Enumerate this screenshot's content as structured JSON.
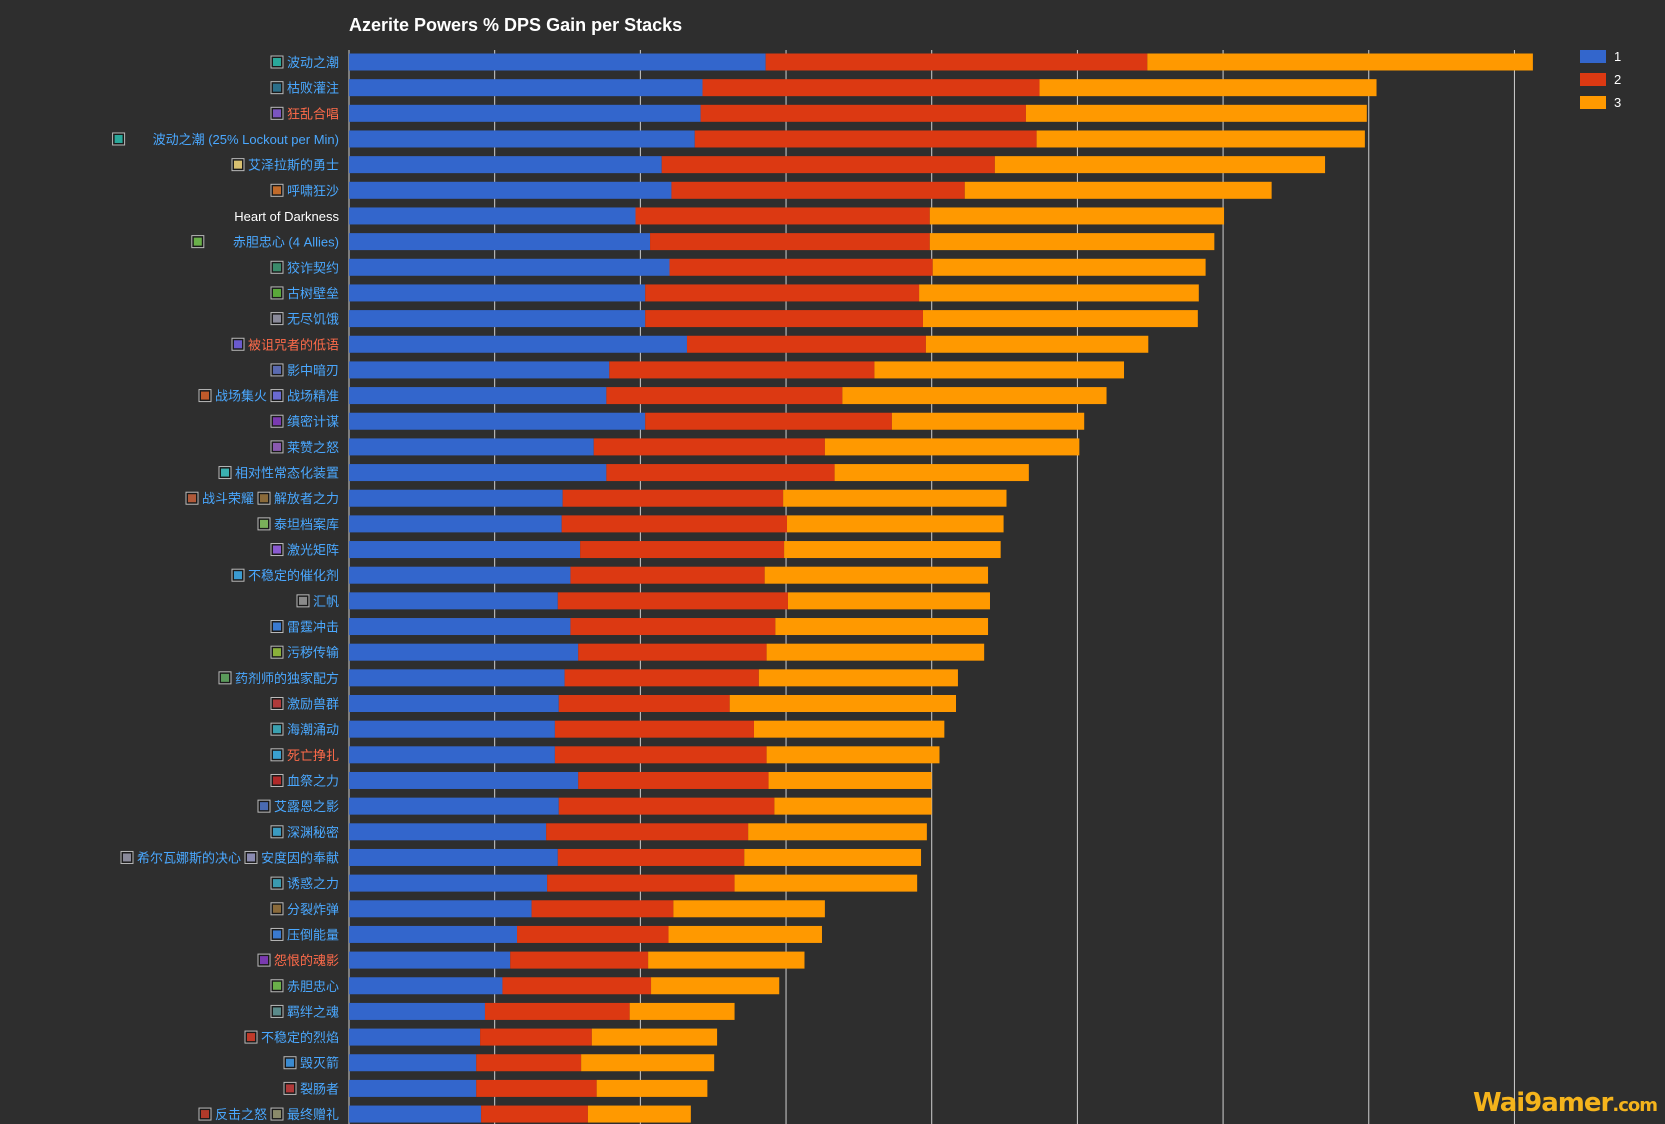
{
  "chart_data": {
    "type": "bar",
    "orientation": "horizontal",
    "stacked": true,
    "title": "Azerite Powers % DPS Gain per Stacks",
    "legend_position": "top-right",
    "grid": true,
    "series": [
      {
        "name": "1",
        "color": "#3366cc"
      },
      {
        "name": "2",
        "color": "#dc3912"
      },
      {
        "name": "3",
        "color": "#ff9900"
      }
    ],
    "rows": [
      {
        "label": "波动之潮",
        "label_color": "#4aa8ff",
        "icon_color": "#2aa89a",
        "values": [
          42.9,
          39.3,
          39.7
        ]
      },
      {
        "label": "枯败灌注",
        "label_color": "#4aa8ff",
        "icon_color": "#2b6f8a",
        "values": [
          36.4,
          34.7,
          34.7
        ]
      },
      {
        "label": "狂乱合唱",
        "label_color": "#ff6b4a",
        "icon_color": "#7a55c0",
        "values": [
          36.2,
          33.5,
          35.1
        ]
      },
      {
        "label": "波动之潮 (25% Lockout per Min)",
        "label_color": "#4aa8ff",
        "icon_color": "#2aa89a",
        "values": [
          35.6,
          35.2,
          33.8
        ]
      },
      {
        "label": "艾泽拉斯的勇士",
        "label_color": "#4aa8ff",
        "icon_color": "#d8c070",
        "values": [
          32.2,
          34.3,
          34.0
        ]
      },
      {
        "label": "呼啸狂沙",
        "label_color": "#4aa8ff",
        "icon_color": "#c06a2a",
        "values": [
          33.2,
          30.2,
          31.6
        ]
      },
      {
        "label": "Heart of Darkness",
        "label_color": "#ffffff",
        "icon_color": "",
        "values": [
          29.5,
          30.3,
          30.3
        ]
      },
      {
        "label": "赤胆忠心 (4 Allies)",
        "label_color": "#4aa8ff",
        "icon_color": "#6ab04a",
        "values": [
          31.0,
          28.8,
          29.3
        ]
      },
      {
        "label": "狡诈契约",
        "label_color": "#4aa8ff",
        "icon_color": "#3a8a6a",
        "values": [
          33.0,
          27.1,
          28.1
        ]
      },
      {
        "label": "古树壁垒",
        "label_color": "#4aa8ff",
        "icon_color": "#5aa83a",
        "values": [
          30.5,
          28.2,
          28.8
        ]
      },
      {
        "label": "无尽饥饿",
        "label_color": "#4aa8ff",
        "icon_color": "#8a8a9a",
        "values": [
          30.5,
          28.6,
          28.3
        ]
      },
      {
        "label": "被诅咒者的低语",
        "label_color": "#ff6b4a",
        "icon_color": "#6a5acd",
        "values": [
          34.8,
          24.6,
          22.9
        ]
      },
      {
        "label": "影中暗刃",
        "label_color": "#4aa8ff",
        "icon_color": "#5a6ab0",
        "values": [
          26.8,
          27.3,
          25.7
        ]
      },
      {
        "label": "战场集火",
        "label_color": "#4aa8ff",
        "icon_color": "#c05a2a",
        "values": [
          26.5,
          24.3,
          27.2
        ]
      },
      {
        "label": "缜密计谋",
        "label_color": "#4aa8ff",
        "icon_color": "#7a3ab0",
        "values": [
          30.5,
          25.4,
          19.8
        ]
      },
      {
        "label": "莱赞之怒",
        "label_color": "#4aa8ff",
        "icon_color": "#8a5ab0",
        "values": [
          25.2,
          23.8,
          26.2
        ]
      },
      {
        "label": "相对性常态化装置",
        "label_color": "#4aa8ff",
        "icon_color": "#3ab0b0",
        "values": [
          26.5,
          23.5,
          20.0
        ]
      },
      {
        "label": "战斗荣耀",
        "label_color": "#4aa8ff",
        "icon_color": "#b05a3a",
        "values": [
          22.0,
          22.7,
          23.0
        ]
      },
      {
        "label": "泰坦档案库",
        "label_color": "#4aa8ff",
        "icon_color": "#7ab05a",
        "values": [
          21.9,
          23.2,
          22.3
        ]
      },
      {
        "label": "激光矩阵",
        "label_color": "#4aa8ff",
        "icon_color": "#8a5ad0",
        "values": [
          23.8,
          21.0,
          22.3
        ]
      },
      {
        "label": "不稳定的催化剂",
        "label_color": "#4aa8ff",
        "icon_color": "#3a9ad0",
        "values": [
          22.8,
          20.0,
          23.0
        ]
      },
      {
        "label": "汇帆",
        "label_color": "#4aa8ff",
        "icon_color": "#8a8a8a",
        "values": [
          21.5,
          23.7,
          20.8
        ]
      },
      {
        "label": "雷霆冲击",
        "label_color": "#4aa8ff",
        "icon_color": "#3a7ad0",
        "values": [
          22.8,
          21.1,
          21.9
        ]
      },
      {
        "label": "污秽传输",
        "label_color": "#4aa8ff",
        "icon_color": "#8ab03a",
        "values": [
          23.6,
          19.4,
          22.4
        ]
      },
      {
        "label": "药剂师的独家配方",
        "label_color": "#4aa8ff",
        "icon_color": "#5a9a5a",
        "values": [
          22.2,
          20.0,
          20.5
        ]
      },
      {
        "label": "激励兽群",
        "label_color": "#4aa8ff",
        "icon_color": "#b03a3a",
        "values": [
          21.6,
          17.6,
          23.3
        ]
      },
      {
        "label": "海潮涌动",
        "label_color": "#4aa8ff",
        "icon_color": "#3aa0b0",
        "values": [
          21.2,
          20.5,
          19.6
        ]
      },
      {
        "label": "死亡挣扎",
        "label_color": "#ff6b4a",
        "icon_color": "#3aa0d0",
        "values": [
          21.2,
          21.8,
          17.8
        ]
      },
      {
        "label": "血祭之力",
        "label_color": "#4aa8ff",
        "icon_color": "#b02a2a",
        "values": [
          23.6,
          19.6,
          16.8
        ]
      },
      {
        "label": "艾露恩之影",
        "label_color": "#4aa8ff",
        "icon_color": "#4a6ab0",
        "values": [
          21.6,
          22.2,
          16.2
        ]
      },
      {
        "label": "深渊秘密",
        "label_color": "#4aa8ff",
        "icon_color": "#3a9ac0",
        "values": [
          20.3,
          20.8,
          18.4
        ]
      },
      {
        "label": "希尔瓦娜斯的决心",
        "label_color": "#4aa8ff",
        "icon_color": "#8a8a9a",
        "values": [
          21.5,
          19.2,
          18.2
        ]
      },
      {
        "label": "诱惑之力",
        "label_color": "#4aa8ff",
        "icon_color": "#3a9ab0",
        "values": [
          20.4,
          19.3,
          18.8
        ]
      },
      {
        "label": "分裂炸弹",
        "label_color": "#4aa8ff",
        "icon_color": "#8a6a3a",
        "values": [
          18.8,
          14.6,
          15.6
        ]
      },
      {
        "label": "压倒能量",
        "label_color": "#4aa8ff",
        "icon_color": "#3a7ad0",
        "values": [
          17.3,
          15.6,
          15.8
        ]
      },
      {
        "label": "怨恨的魂影",
        "label_color": "#ff6b4a",
        "icon_color": "#7a3ab0",
        "values": [
          16.6,
          14.2,
          16.1
        ]
      },
      {
        "label": "赤胆忠心",
        "label_color": "#4aa8ff",
        "icon_color": "#6ab04a",
        "values": [
          15.8,
          15.3,
          13.2
        ]
      },
      {
        "label": "羁绊之魂",
        "label_color": "#4aa8ff",
        "icon_color": "#5a8a8a",
        "values": [
          14.0,
          14.9,
          10.8
        ]
      },
      {
        "label": "不稳定的烈焰",
        "label_color": "#4aa8ff",
        "icon_color": "#c03a2a",
        "values": [
          13.5,
          11.5,
          12.9
        ]
      },
      {
        "label": "毁灭箭",
        "label_color": "#4aa8ff",
        "icon_color": "#3a8ad0",
        "values": [
          13.1,
          10.8,
          13.7
        ]
      },
      {
        "label": "裂肠者",
        "label_color": "#4aa8ff",
        "icon_color": "#b03a3a",
        "values": [
          13.1,
          12.4,
          11.4
        ]
      },
      {
        "label": "反击之怒",
        "label_color": "#4aa8ff",
        "icon_color": "#b03a2a",
        "values": [
          13.6,
          11.0,
          10.6
        ]
      }
    ],
    "second_labels": {
      "13": {
        "label": "战场精准",
        "label_color": "#4aa8ff",
        "icon_color": "#6a6ad0"
      },
      "17": {
        "label": "解放者之力",
        "label_color": "#4aa8ff",
        "icon_color": "#8a6a3a"
      },
      "31": {
        "label": "安度因的奉献",
        "label_color": "#4aa8ff",
        "icon_color": "#8a8ab0"
      },
      "41": {
        "label": "最终赠礼",
        "label_color": "#4aa8ff",
        "icon_color": "#8a8a6a"
      }
    },
    "xlim": [
      0,
      125
    ],
    "grid_step": 15
  },
  "watermark": {
    "text": "Wai9amer",
    "sub": ".com"
  }
}
